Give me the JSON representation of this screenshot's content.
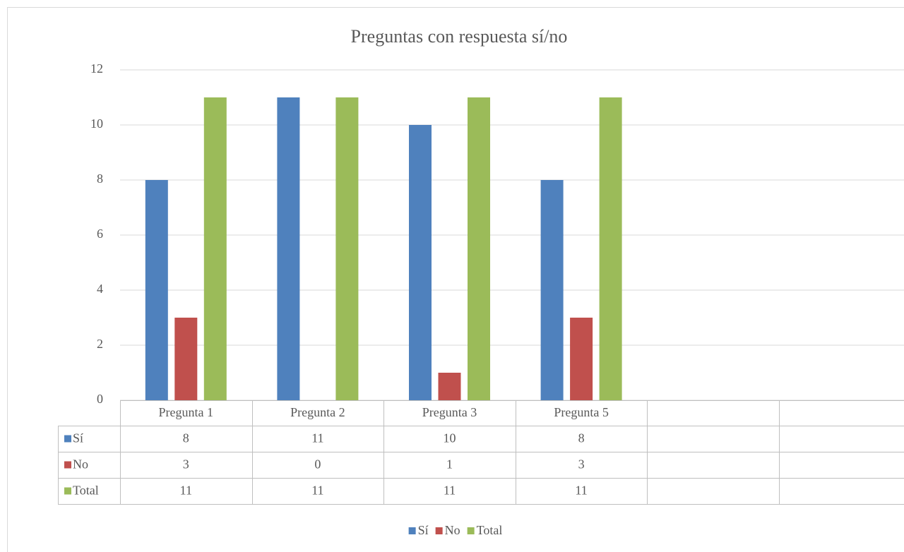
{
  "chart_data": {
    "type": "bar",
    "title": "Preguntas con respuesta sí/no",
    "categories": [
      "Pregunta 1",
      "Pregunta 2",
      "Pregunta 3",
      "Pregunta 5",
      null,
      null
    ],
    "series": [
      {
        "name": "Sí",
        "color": "#4f81bd",
        "values": [
          8,
          11,
          10,
          8,
          null,
          null
        ]
      },
      {
        "name": "No",
        "color": "#c0504d",
        "values": [
          3,
          0,
          1,
          3,
          null,
          null
        ]
      },
      {
        "name": "Total",
        "color": "#9bbb59",
        "values": [
          11,
          11,
          11,
          11,
          null,
          null
        ]
      }
    ],
    "ylim": [
      0,
      12
    ],
    "yticks": [
      0,
      2,
      4,
      6,
      8,
      10,
      12
    ],
    "grid": true,
    "data_table": true,
    "legend": "bottom"
  }
}
